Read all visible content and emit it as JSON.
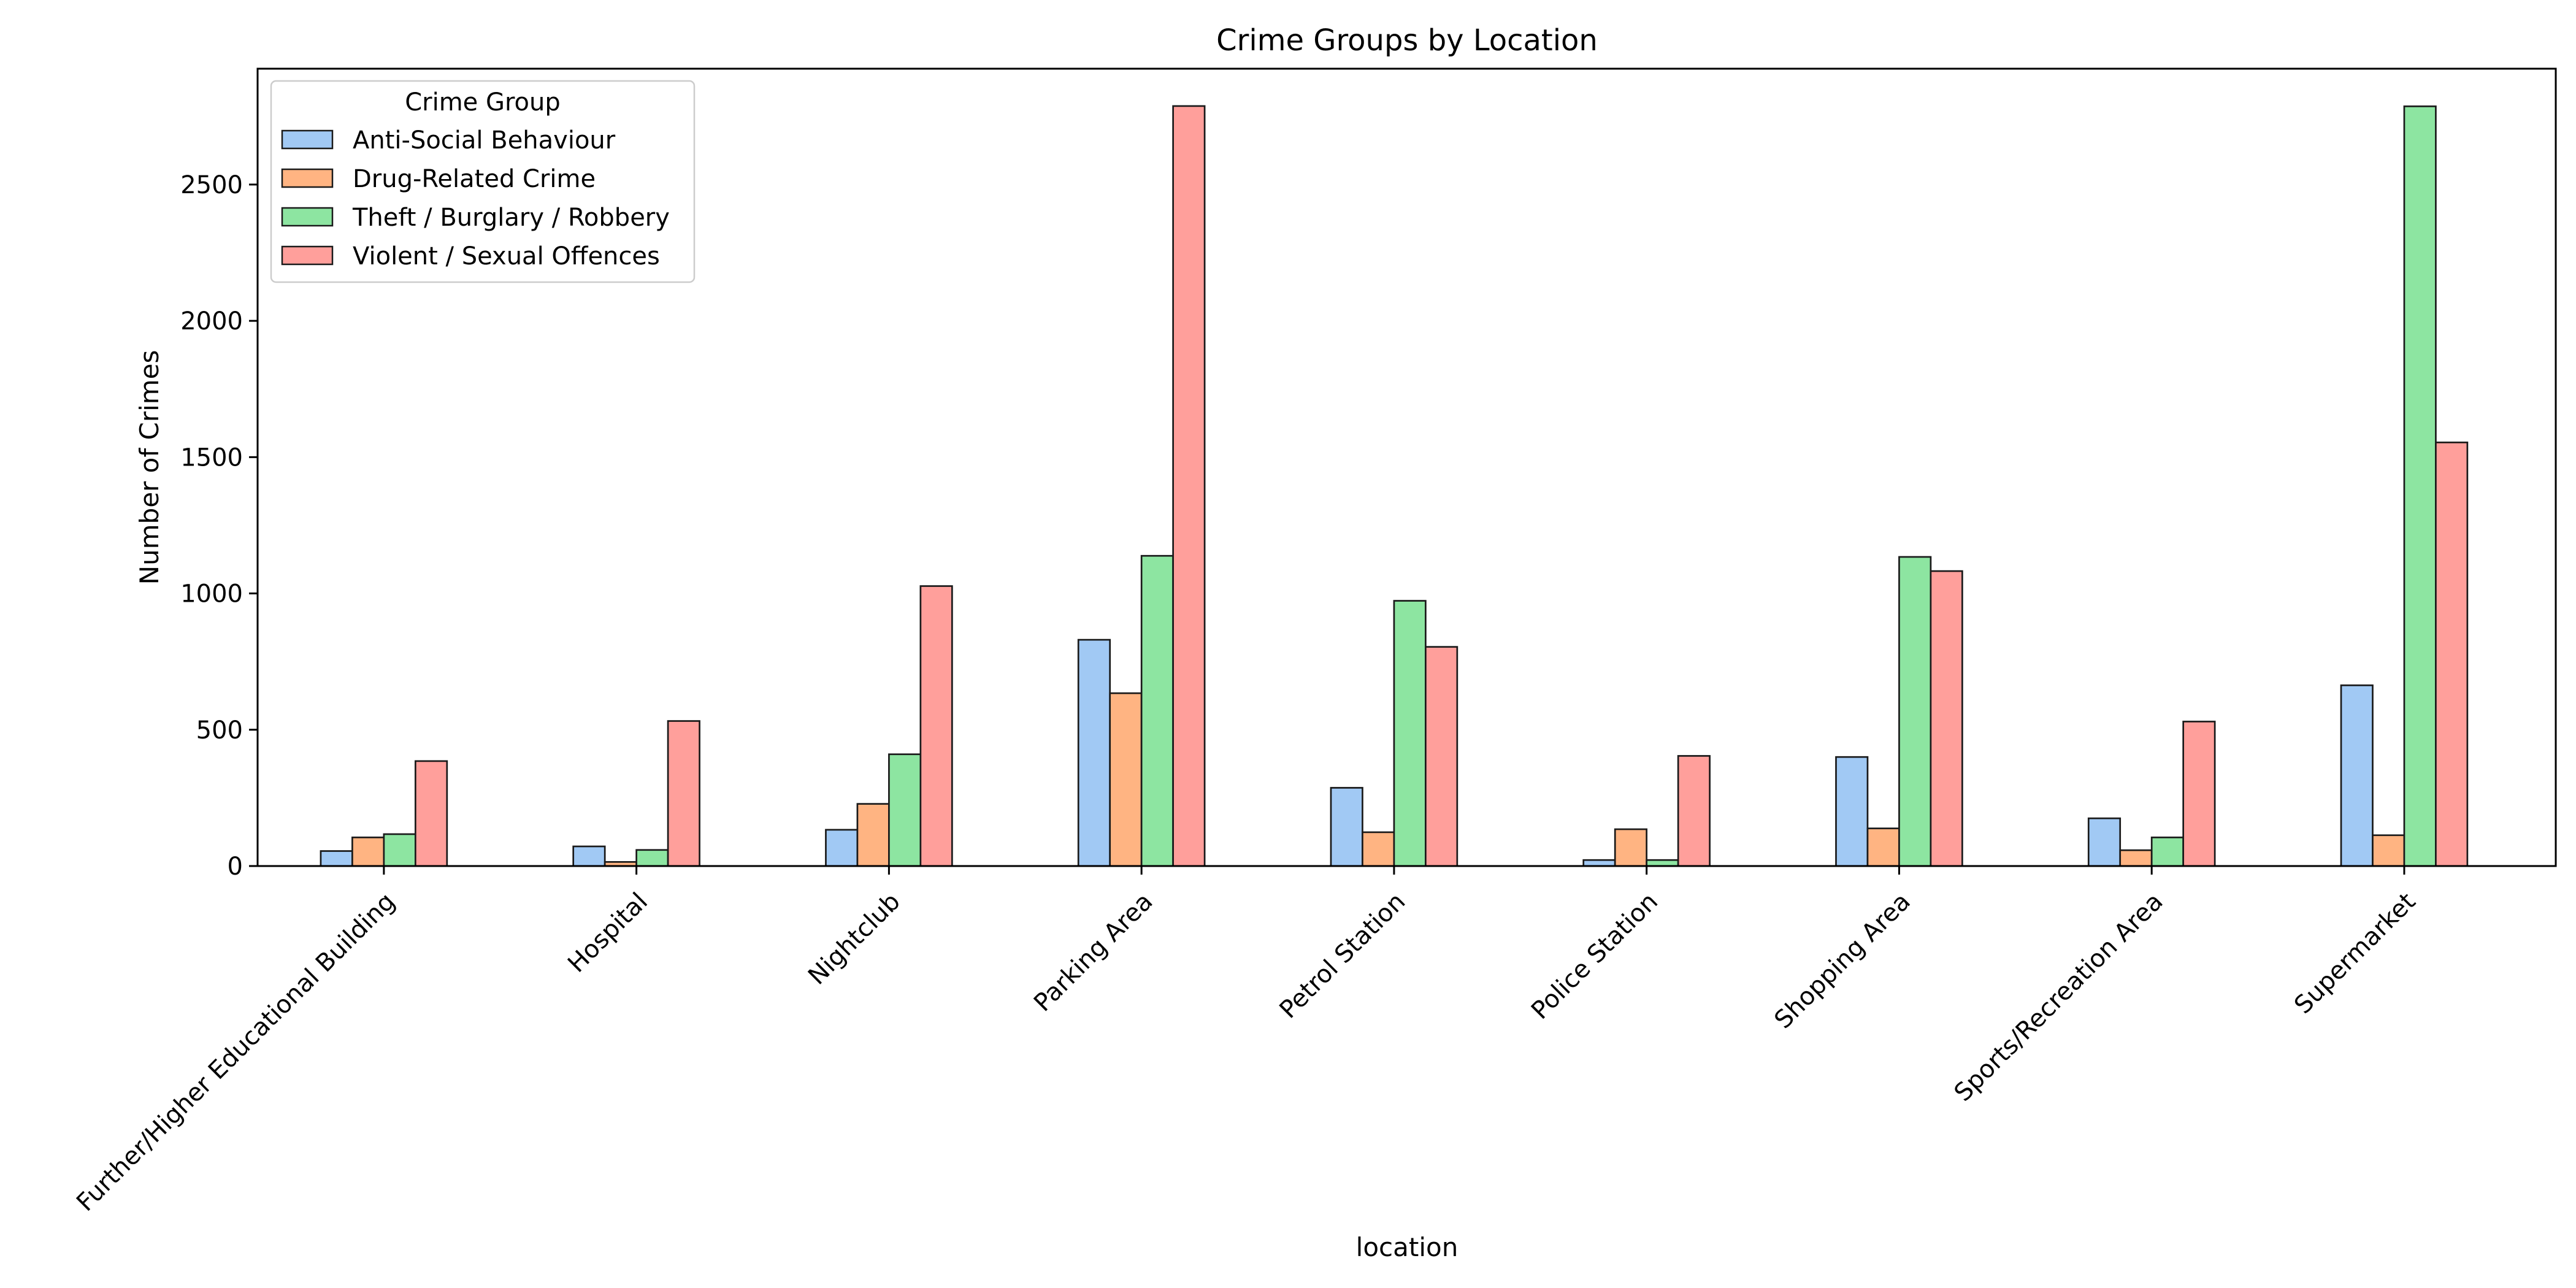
{
  "chart_data": {
    "type": "bar",
    "title": "Crime Groups by Location",
    "xlabel": "location",
    "ylabel": "Number of Crimes",
    "ylim": [
      0,
      2925
    ],
    "yticks": [
      0,
      500,
      1000,
      1500,
      2000,
      2500
    ],
    "grid": false,
    "legend": {
      "title": "Crime Group",
      "placement": "top-left"
    },
    "categories": [
      "Further/Higher Educational Building",
      "Hospital",
      "Nightclub",
      "Parking Area",
      "Petrol Station",
      "Police Station",
      "Shopping Area",
      "Sports/Recreation Area",
      "Supermarket"
    ],
    "series": [
      {
        "name": "Anti-Social Behaviour",
        "color": "#a1c9f4",
        "values": [
          55,
          72,
          133,
          830,
          287,
          22,
          400,
          175,
          663
        ]
      },
      {
        "name": "Drug-Related Crime",
        "color": "#ffb482",
        "values": [
          105,
          15,
          228,
          634,
          124,
          135,
          138,
          58,
          113
        ]
      },
      {
        "name": "Theft / Burglary / Robbery",
        "color": "#8de5a1",
        "values": [
          117,
          59,
          410,
          1138,
          973,
          22,
          1134,
          105,
          2787
        ]
      },
      {
        "name": "Violent / Sexual Offences",
        "color": "#ff9f9b",
        "values": [
          385,
          532,
          1027,
          2788,
          804,
          404,
          1082,
          530,
          1554
        ]
      }
    ]
  }
}
